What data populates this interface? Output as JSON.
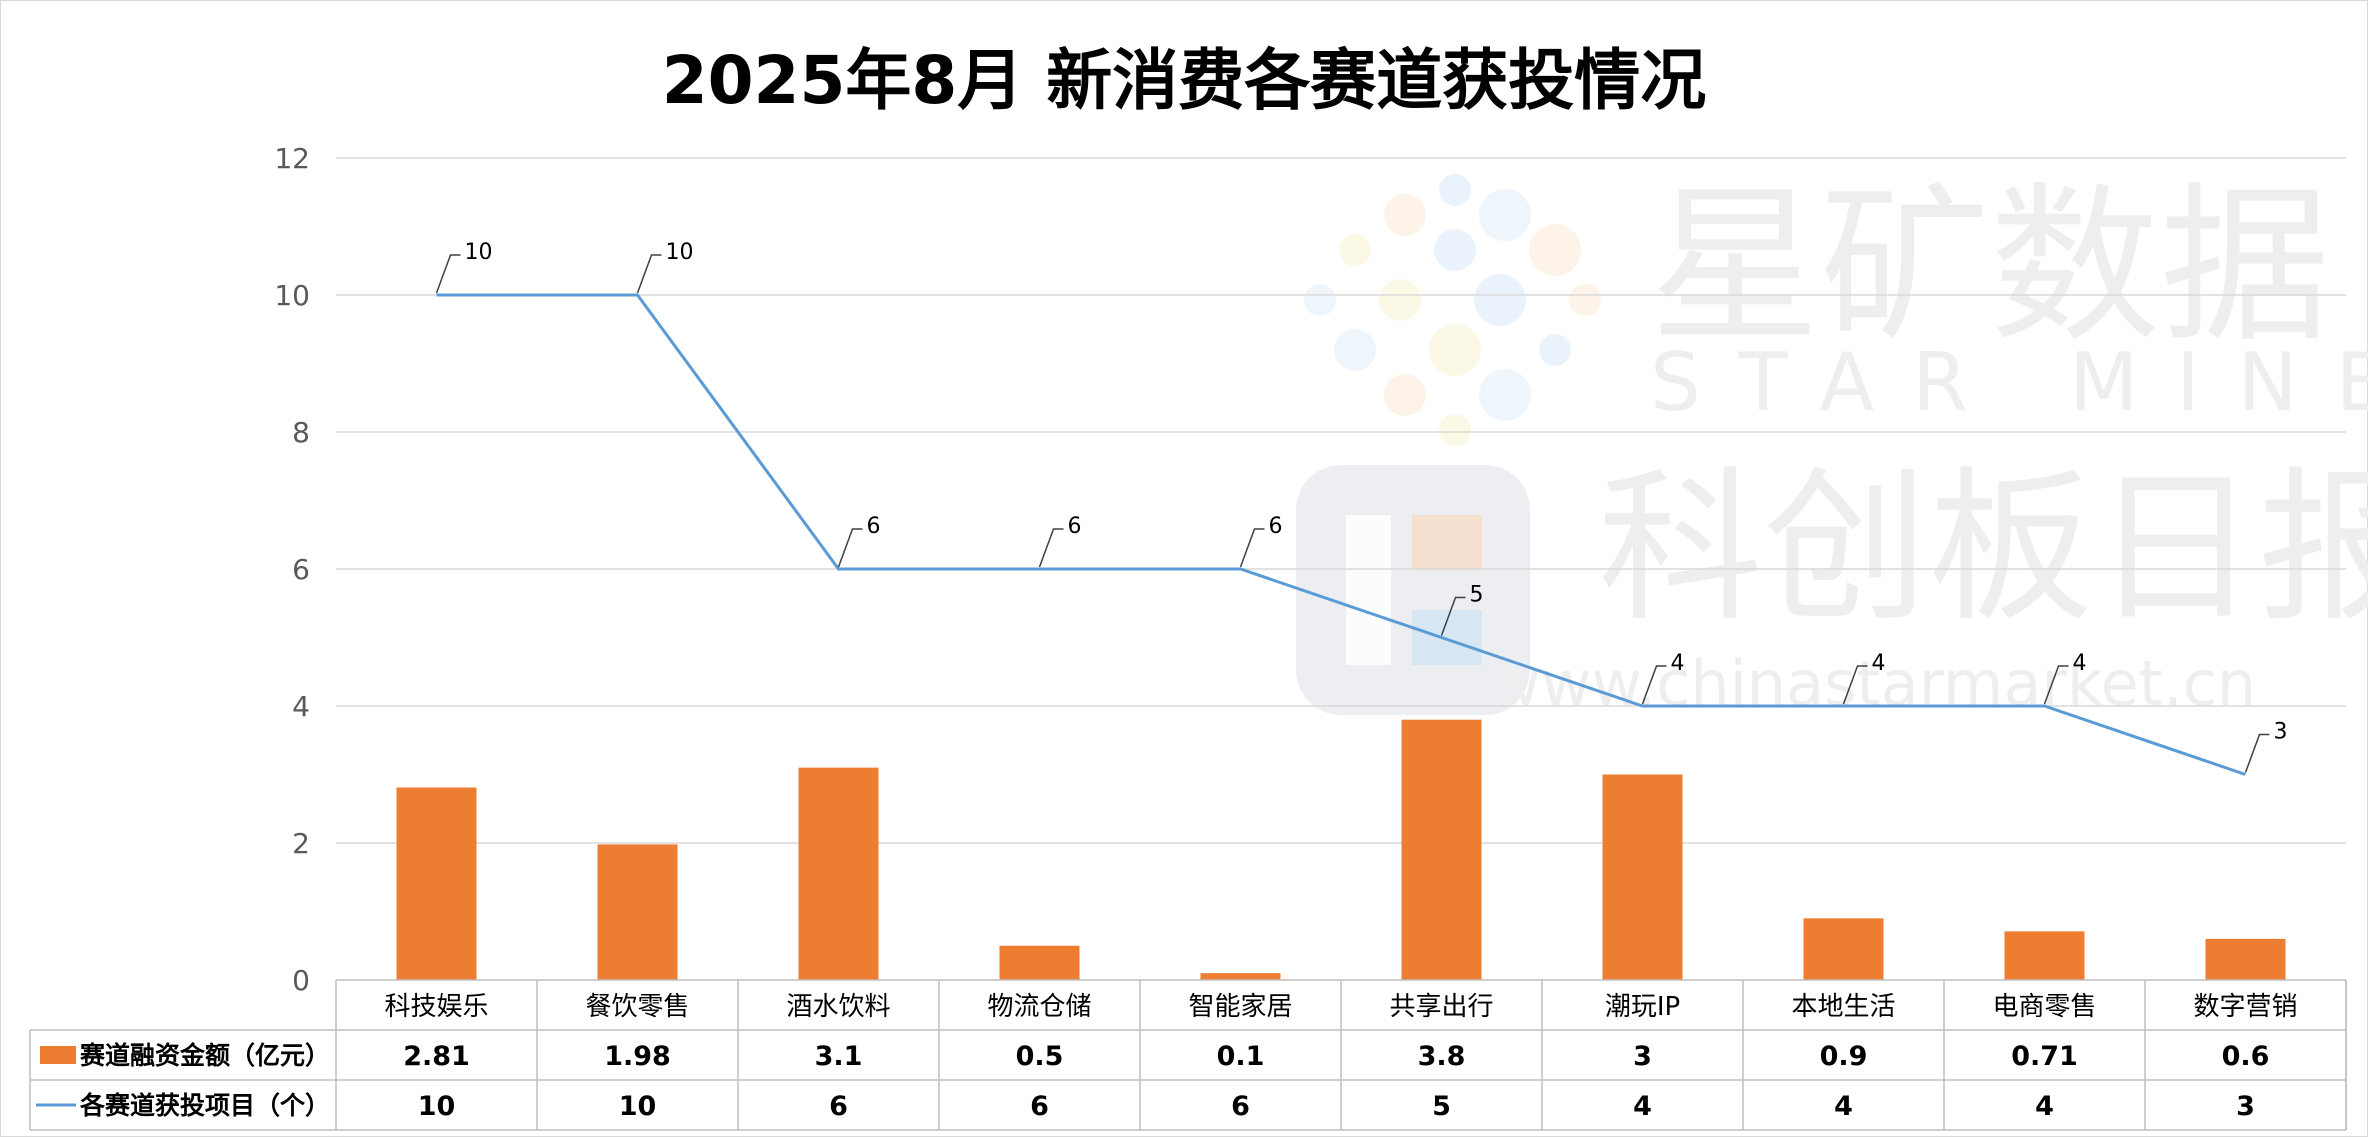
{
  "chart_data": {
    "type": "bar+line",
    "title": "2025年8月 新消费各赛道获投情况",
    "categories": [
      "科技娱乐",
      "餐饮零售",
      "酒水饮料",
      "物流仓储",
      "智能家居",
      "共享出行",
      "潮玩IP",
      "本地生活",
      "电商零售",
      "数字营销"
    ],
    "series": [
      {
        "name": "赛道融资金额（亿元）",
        "type": "bar",
        "values": [
          2.81,
          1.98,
          3.1,
          0.5,
          0.1,
          3.8,
          3,
          0.9,
          0.71,
          0.6
        ]
      },
      {
        "name": "各赛道获投项目（个）",
        "type": "line",
        "values": [
          10,
          10,
          6,
          6,
          6,
          5,
          4,
          4,
          4,
          3
        ]
      }
    ],
    "bar_value_labels": [
      "2.81",
      "1.98",
      "3.1",
      "0.5",
      "0.1",
      "3.8",
      "3",
      "0.9",
      "0.71",
      "0.6"
    ],
    "line_value_labels": [
      "10",
      "10",
      "6",
      "6",
      "6",
      "5",
      "4",
      "4",
      "4",
      "3"
    ],
    "ylim": [
      0,
      12
    ],
    "yticks": [
      0,
      2,
      4,
      6,
      8,
      10,
      12
    ],
    "grid": true,
    "legend": "data-table-bottom",
    "colors": {
      "bar": "#ED7D31",
      "line": "#5B9BD5"
    }
  },
  "watermark": {
    "cn_name": "星矿数据",
    "en_name": "STAR MINE",
    "paper_name": "科创板日报",
    "url": "www.chinastarmarket.cn"
  }
}
